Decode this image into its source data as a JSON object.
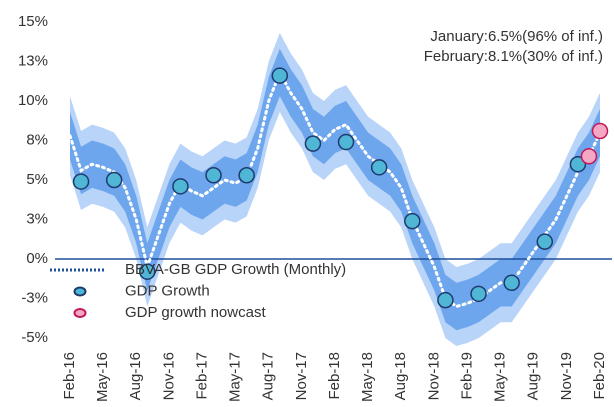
{
  "chart_data": {
    "type": "line",
    "annotations": [
      "January:6.5%(96% of inf.)",
      "February:8.1%(30% of inf.)"
    ],
    "annotation_color": "#c2185b",
    "categories": [
      "Feb-16",
      null,
      null,
      "May-16",
      null,
      null,
      "Aug-16",
      null,
      null,
      "Nov-16",
      null,
      null,
      "Feb-17",
      null,
      null,
      "May-17",
      null,
      null,
      "Aug-17",
      null,
      null,
      "Nov-17",
      null,
      null,
      "Feb-18",
      null,
      null,
      "May-18",
      null,
      null,
      "Aug-18",
      null,
      null,
      "Nov-18",
      null,
      null,
      "Feb-19",
      null,
      null,
      "May-19",
      null,
      null,
      "Aug-19",
      null,
      null,
      "Nov-19",
      null,
      null,
      "Feb-20"
    ],
    "bands": [
      {
        "color": "#b8d4f8",
        "lower": [
          5.3,
          3.1,
          3.5,
          3.3,
          3.0,
          2.0,
          0.0,
          -3.0,
          -1.0,
          1.0,
          2.3,
          1.8,
          1.5,
          2.0,
          2.5,
          2.3,
          2.7,
          4.5,
          7.5,
          9.3,
          8.0,
          7.0,
          5.5,
          5.0,
          5.7,
          6.0,
          5.0,
          4.0,
          3.5,
          3.0,
          2.0,
          0.0,
          -1.5,
          -3.0,
          -5.0,
          -5.5,
          -5.3,
          -5.0,
          -4.5,
          -4.0,
          -4.0,
          -3.0,
          -2.0,
          -1.0,
          0.0,
          1.5,
          3.0,
          4.0,
          5.5
        ],
        "upper": [
          10.3,
          8.1,
          8.5,
          8.3,
          8.0,
          7.0,
          5.0,
          2.0,
          4.0,
          6.0,
          7.3,
          6.8,
          6.5,
          7.0,
          7.5,
          7.3,
          7.7,
          9.5,
          12.5,
          14.3,
          13.0,
          12.0,
          10.5,
          10.0,
          10.7,
          11.0,
          10.0,
          9.0,
          8.5,
          8.0,
          7.0,
          5.0,
          3.5,
          2.0,
          0.0,
          -0.5,
          -0.3,
          0.0,
          0.5,
          1.0,
          1.0,
          2.0,
          3.0,
          4.0,
          5.0,
          6.5,
          8.0,
          9.0,
          10.5
        ]
      },
      {
        "color": "#6ea6ee",
        "lower": [
          6.3,
          4.1,
          4.5,
          4.3,
          4.0,
          3.0,
          1.0,
          -2.0,
          0.0,
          2.0,
          3.3,
          2.8,
          2.5,
          3.0,
          3.5,
          3.3,
          3.7,
          5.5,
          8.5,
          10.3,
          9.0,
          8.0,
          6.5,
          6.0,
          6.7,
          7.0,
          6.0,
          5.0,
          4.5,
          4.0,
          3.0,
          1.0,
          -0.5,
          -2.0,
          -4.0,
          -4.5,
          -4.3,
          -4.0,
          -3.5,
          -3.0,
          -3.0,
          -2.0,
          -1.0,
          0.0,
          1.0,
          2.5,
          4.0,
          5.0,
          6.5
        ],
        "upper": [
          9.3,
          7.1,
          7.5,
          7.3,
          7.0,
          6.0,
          4.0,
          1.0,
          3.0,
          5.0,
          6.3,
          5.8,
          5.5,
          6.0,
          6.5,
          6.3,
          6.7,
          8.5,
          11.5,
          13.3,
          12.0,
          11.0,
          9.5,
          9.0,
          9.7,
          10.0,
          9.0,
          8.0,
          7.5,
          7.0,
          6.0,
          4.0,
          2.5,
          1.0,
          -1.0,
          -1.5,
          -1.3,
          -1.0,
          -0.5,
          0.0,
          0.0,
          1.0,
          2.0,
          3.0,
          4.0,
          5.5,
          7.0,
          8.0,
          9.5
        ]
      }
    ],
    "series": [
      {
        "name": "BBVA-GB GDP Growth (Monthly)",
        "kind": "line",
        "color": "#ffffff",
        "legend_color": "#1f4e9c",
        "values": [
          7.8,
          5.6,
          6.0,
          5.8,
          5.5,
          4.5,
          2.5,
          -0.5,
          1.5,
          3.5,
          4.8,
          4.3,
          4.0,
          4.5,
          5.0,
          4.8,
          5.2,
          7.0,
          10.0,
          11.8,
          10.5,
          9.5,
          8.0,
          7.5,
          8.2,
          8.5,
          7.5,
          6.5,
          6.0,
          5.5,
          4.5,
          2.5,
          1.0,
          -0.5,
          -2.5,
          -3.0,
          -2.8,
          -2.5,
          -2.0,
          -1.5,
          -1.5,
          -0.5,
          0.5,
          1.5,
          2.5,
          4.0,
          5.5,
          6.5,
          8.0
        ]
      },
      {
        "name": "GDP Growth",
        "kind": "marker",
        "color": "#4fb6d6",
        "edge": "#1f3a6e",
        "values": [
          null,
          4.9,
          null,
          null,
          5.0,
          null,
          null,
          -0.8,
          null,
          null,
          4.6,
          null,
          null,
          5.3,
          null,
          null,
          5.3,
          null,
          null,
          11.6,
          null,
          null,
          7.3,
          null,
          null,
          7.4,
          null,
          null,
          5.8,
          null,
          null,
          2.4,
          null,
          null,
          -2.6,
          null,
          null,
          -2.2,
          null,
          null,
          -1.5,
          null,
          null,
          1.1,
          null,
          null,
          6.0,
          null,
          null
        ]
      },
      {
        "name": "GDP growth nowcast",
        "kind": "marker",
        "color": "#f4a8c4",
        "edge": "#c2185b",
        "values": [
          null,
          null,
          null,
          null,
          null,
          null,
          null,
          null,
          null,
          null,
          null,
          null,
          null,
          null,
          null,
          null,
          null,
          null,
          null,
          null,
          null,
          null,
          null,
          null,
          null,
          null,
          null,
          null,
          null,
          null,
          null,
          null,
          null,
          null,
          null,
          null,
          null,
          null,
          null,
          null,
          null,
          null,
          null,
          null,
          null,
          null,
          null,
          6.5,
          8.1
        ]
      }
    ],
    "ylim": [
      -5.5,
      15.5
    ],
    "yticks": [
      {
        "value": 15,
        "label": "15%"
      },
      {
        "value": 12.5,
        "label": "13%"
      },
      {
        "value": 10,
        "label": "10%"
      },
      {
        "value": 7.5,
        "label": "8%"
      },
      {
        "value": 5,
        "label": "5%"
      },
      {
        "value": 2.5,
        "label": "3%"
      },
      {
        "value": 0,
        "label": "0%"
      },
      {
        "value": -2.5,
        "label": "-3%"
      },
      {
        "value": -5,
        "label": "-5%"
      }
    ],
    "zero_line_color": "#1f4e9c"
  }
}
